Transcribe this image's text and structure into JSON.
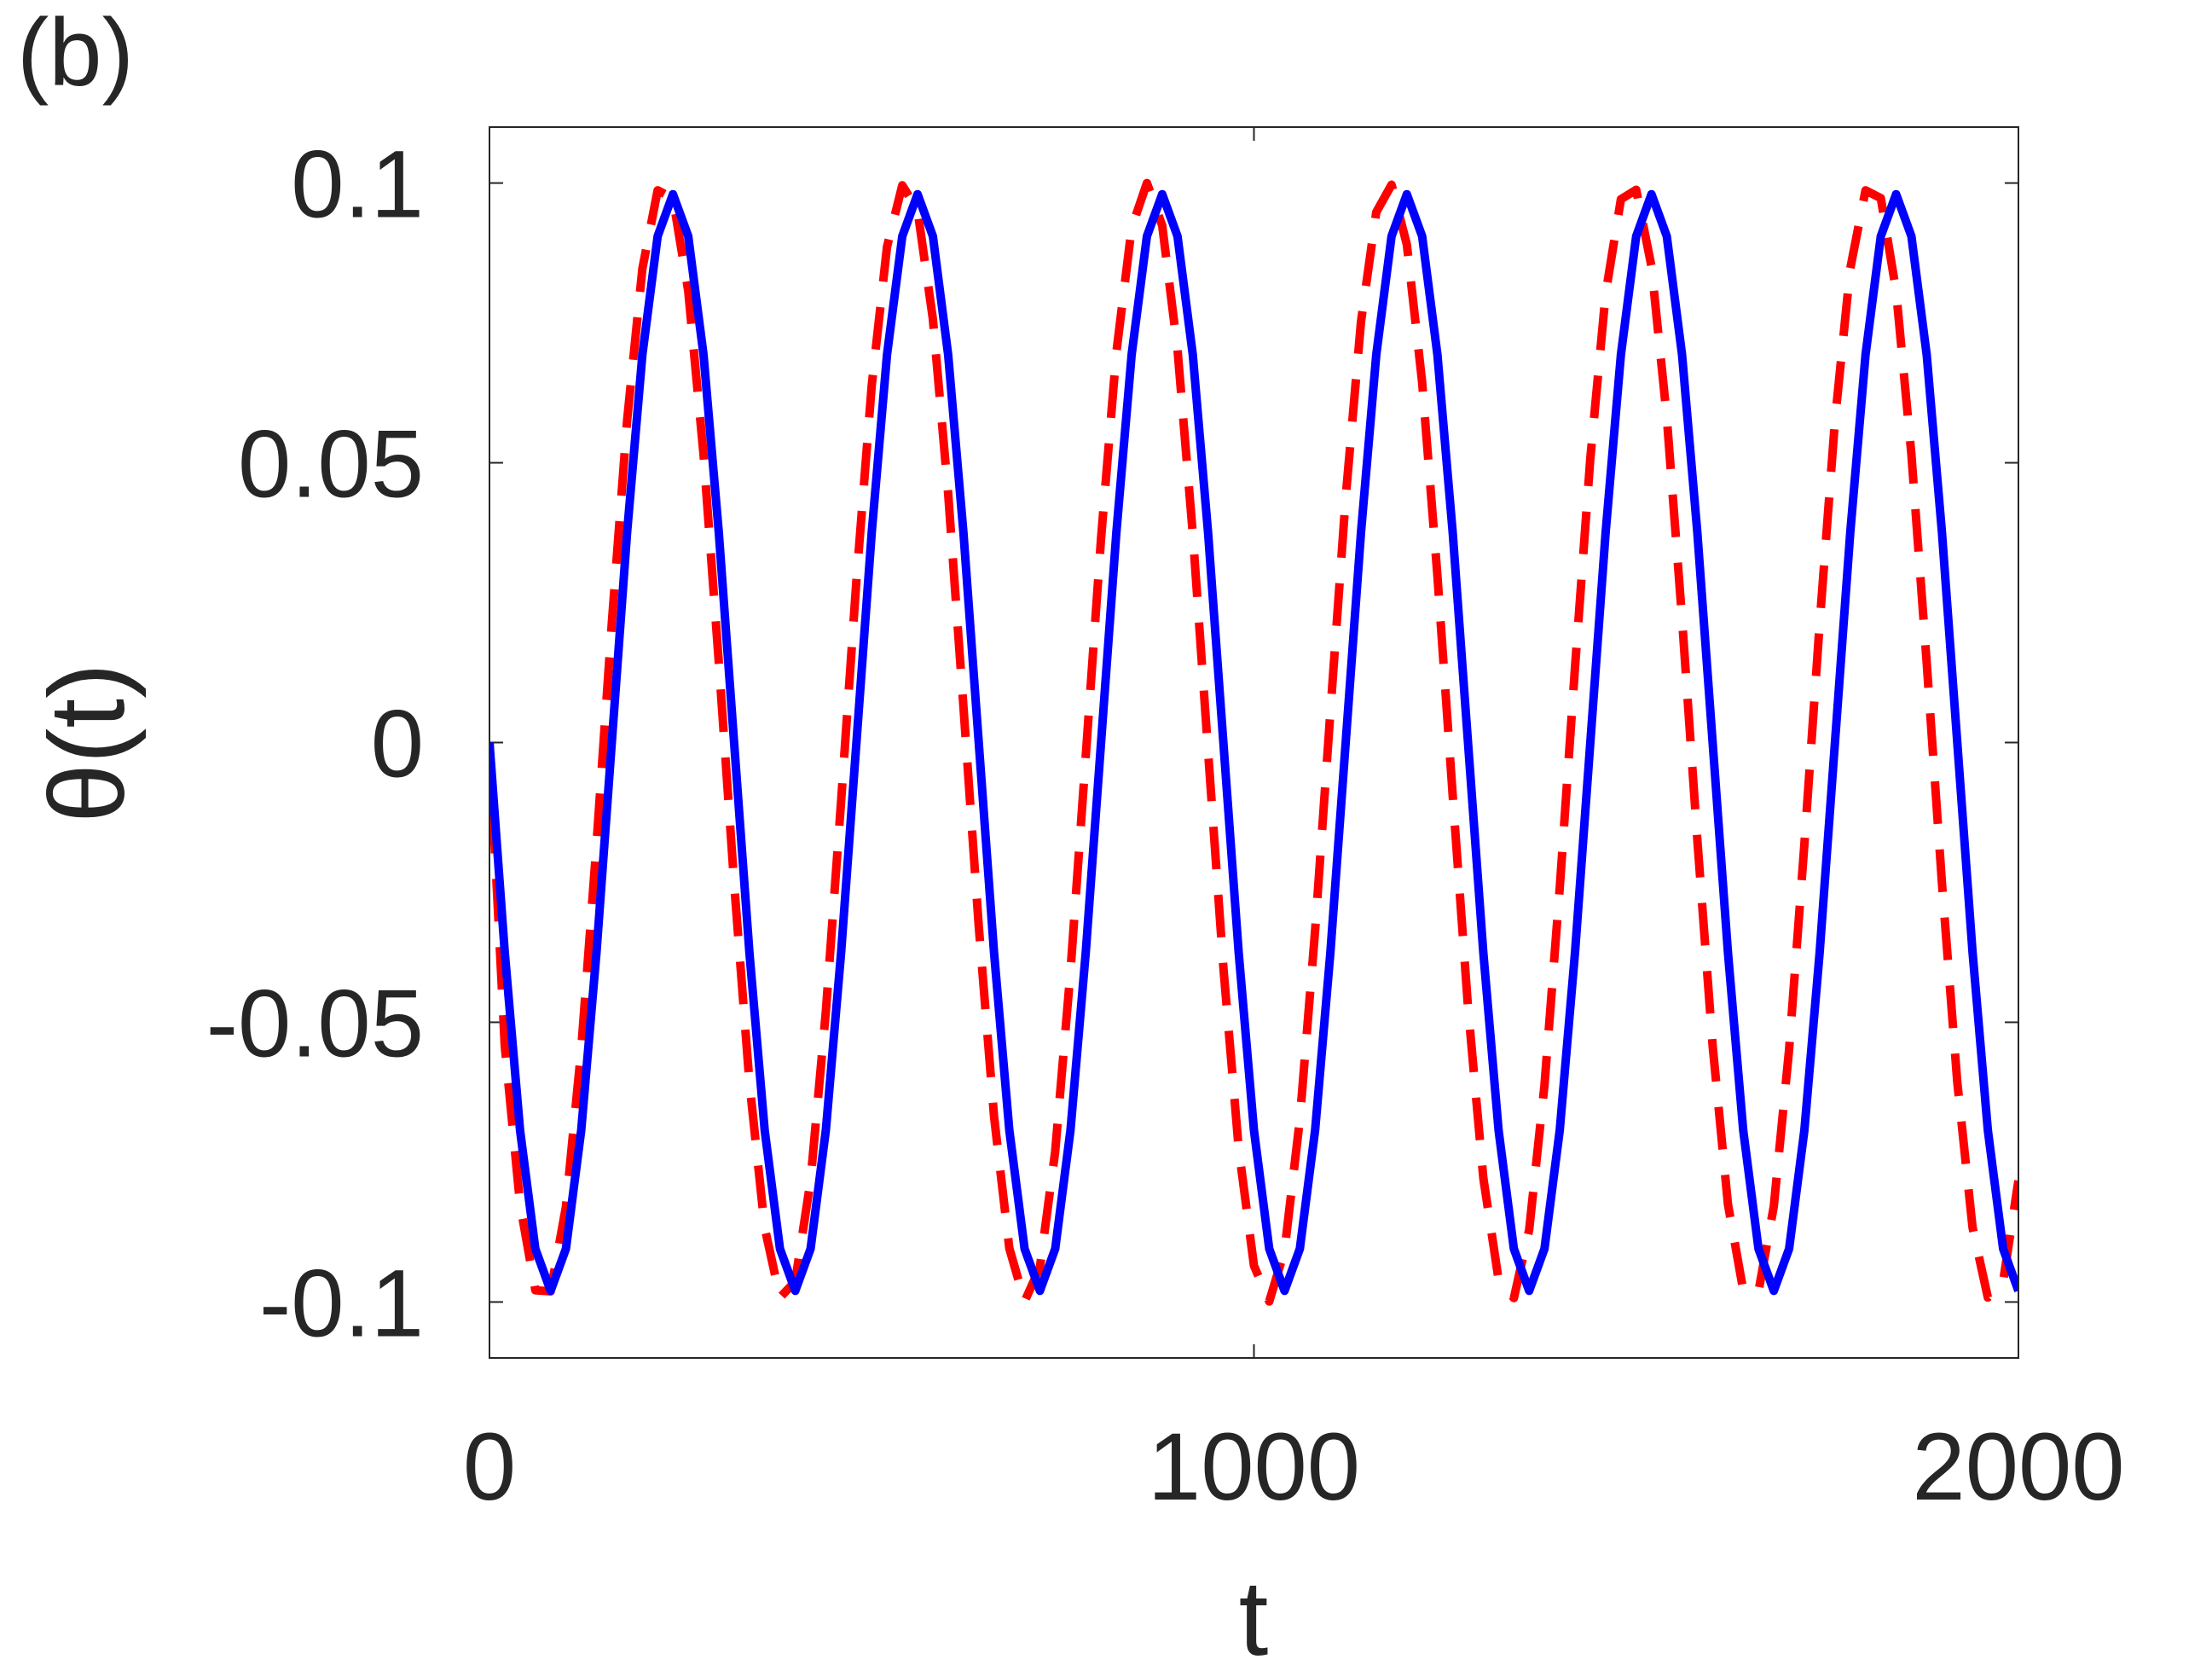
{
  "chart_data": {
    "type": "line",
    "annotation": "(b)",
    "xlabel": "t",
    "ylabel": "θ(t)",
    "xlim": [
      0,
      2000
    ],
    "ylim": [
      -0.11,
      0.11
    ],
    "xticks": [
      0,
      1000,
      2000
    ],
    "yticks": [
      -0.1,
      -0.05,
      0,
      0.05,
      0.1
    ],
    "grid": false,
    "x": [
      0,
      20,
      40,
      60,
      80,
      100,
      120,
      140,
      160,
      180,
      200,
      220,
      240,
      260,
      280,
      300,
      320,
      340,
      360,
      380,
      400,
      420,
      440,
      460,
      480,
      500,
      520,
      540,
      560,
      580,
      600,
      620,
      640,
      660,
      680,
      700,
      720,
      740,
      760,
      780,
      800,
      820,
      840,
      860,
      880,
      900,
      920,
      940,
      960,
      980,
      1000,
      1020,
      1040,
      1060,
      1080,
      1100,
      1120,
      1140,
      1160,
      1180,
      1200,
      1220,
      1240,
      1260,
      1280,
      1300,
      1320,
      1340,
      1360,
      1380,
      1400,
      1420,
      1440,
      1460,
      1480,
      1500,
      1520,
      1540,
      1560,
      1580,
      1600,
      1620,
      1640,
      1660,
      1680,
      1700,
      1720,
      1740,
      1760,
      1780,
      1800,
      1820,
      1840,
      1860,
      1880,
      1900,
      1920,
      1940,
      1960,
      1980,
      2000
    ],
    "series": [
      {
        "color": "#ff0000",
        "line_style": "dashed",
        "values": [
          0,
          -0.0542,
          -0.0825,
          -0.0979,
          -0.0981,
          -0.083,
          -0.0549,
          -0.0182,
          0.0213,
          0.0575,
          0.0847,
          0.0987,
          0.0973,
          0.0807,
          0.0515,
          0.0143,
          -0.0251,
          -0.0607,
          -0.0867,
          -0.0992,
          -0.0963,
          -0.0783,
          -0.0481,
          -0.0104,
          0.029,
          0.0638,
          0.0886,
          0.0996,
          0.0951,
          0.0757,
          0.0445,
          0.0064,
          -0.0328,
          -0.0668,
          -0.0904,
          -0.0999,
          -0.0938,
          -0.0731,
          -0.0409,
          -0.0024,
          0.0365,
          0.0697,
          0.092,
          0.1,
          0.0924,
          0.0703,
          0.0373,
          -0.0016,
          -0.0402,
          -0.0725,
          -0.0935,
          -0.0999,
          -0.0908,
          -0.0674,
          -0.0336,
          0.0055,
          0.0438,
          0.0752,
          0.0948,
          0.0997,
          0.089,
          0.0644,
          0.0298,
          -0.0095,
          -0.0473,
          -0.0778,
          -0.096,
          -0.0993,
          -0.0871,
          -0.0613,
          -0.026,
          0.0135,
          0.0508,
          0.0802,
          0.0971,
          0.0988,
          0.0851,
          0.0582,
          0.0221,
          -0.0174,
          -0.0542,
          -0.0825,
          -0.0979,
          -0.0981,
          -0.0829,
          -0.0549,
          -0.0182,
          0.0213,
          0.0575,
          0.0847,
          0.0987,
          0.0973,
          0.0807,
          0.0515,
          0.0143,
          -0.0252,
          -0.0607,
          -0.0867,
          -0.0992,
          -0.0963,
          -0.0783
        ]
      },
      {
        "color": "#0000ff",
        "line_style": "solid",
        "values": [
          0,
          -0.0375,
          -0.0693,
          -0.0905,
          -0.098,
          -0.0905,
          -0.0693,
          -0.0375,
          0,
          0.0375,
          0.0693,
          0.0905,
          0.098,
          0.0905,
          0.0693,
          0.0375,
          0,
          -0.0375,
          -0.0693,
          -0.0905,
          -0.098,
          -0.0905,
          -0.0693,
          -0.0375,
          0,
          0.0375,
          0.0693,
          0.0905,
          0.098,
          0.0905,
          0.0693,
          0.0375,
          0,
          -0.0375,
          -0.0693,
          -0.0905,
          -0.098,
          -0.0905,
          -0.0693,
          -0.0375,
          0,
          0.0375,
          0.0693,
          0.0905,
          0.098,
          0.0905,
          0.0693,
          0.0375,
          0,
          -0.0375,
          -0.0693,
          -0.0905,
          -0.098,
          -0.0905,
          -0.0693,
          -0.0375,
          0,
          0.0375,
          0.0693,
          0.0905,
          0.098,
          0.0905,
          0.0693,
          0.0375,
          0,
          -0.0375,
          -0.0693,
          -0.0905,
          -0.098,
          -0.0905,
          -0.0693,
          -0.0375,
          0,
          0.0375,
          0.0693,
          0.0905,
          0.098,
          0.0905,
          0.0693,
          0.0375,
          0,
          -0.0375,
          -0.0693,
          -0.0905,
          -0.098,
          -0.0905,
          -0.0693,
          -0.0375,
          0,
          0.0375,
          0.0693,
          0.0905,
          0.098,
          0.0905,
          0.0693,
          0.0375,
          0,
          -0.0375,
          -0.0693,
          -0.0905,
          -0.098
        ]
      }
    ]
  }
}
